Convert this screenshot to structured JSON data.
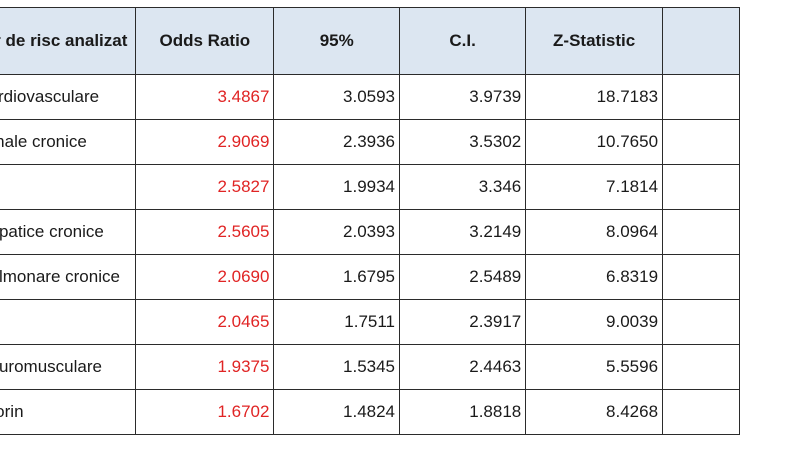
{
  "table": {
    "headers": [
      "Factor de risc analizat",
      "Odds Ratio",
      "95%",
      "C.I.",
      "Z-Statistic",
      ""
    ],
    "rows": [
      {
        "factor": "Boli cardiovasculare",
        "odds_ratio": "3.4867",
        "ci_low": "3.0593",
        "ci_high": "3.9739",
        "z": "18.7183",
        "extra": ""
      },
      {
        "factor": "Boli renale cronice",
        "odds_ratio": "2.9069",
        "ci_low": "2.3936",
        "ci_high": "3.5302",
        "z": "10.7650",
        "extra": ""
      },
      {
        "factor": "",
        "odds_ratio": "2.5827",
        "ci_low": "1.9934",
        "ci_high": "3.346",
        "z": "7.1814",
        "extra": ""
      },
      {
        "factor": "Boli hepatice cronice",
        "odds_ratio": "2.5605",
        "ci_low": "2.0393",
        "ci_high": "3.2149",
        "z": "8.0964",
        "extra": ""
      },
      {
        "factor": "Boli pulmonare cronice",
        "odds_ratio": "2.0690",
        "ci_low": "1.6795",
        "ci_high": "2.5489",
        "z": "6.8319",
        "extra": ""
      },
      {
        "factor": "",
        "odds_ratio": "2.0465",
        "ci_low": "1.7511",
        "ci_high": "2.3917",
        "z": "9.0039",
        "extra": ""
      },
      {
        "factor": "Boli neuromusculare",
        "odds_ratio": "1.9375",
        "ci_low": "1.5345",
        "ci_high": "2.4463",
        "z": "5.5596",
        "extra": ""
      },
      {
        "factor": "Fumatorin",
        "odds_ratio": "1.6702",
        "ci_low": "1.4824",
        "ci_high": "1.8818",
        "z": "8.4268",
        "extra": ""
      }
    ]
  },
  "colors": {
    "header_bg": "#dce6f1",
    "odds_ratio_text": "#e02424",
    "border": "#2b2b2b"
  }
}
